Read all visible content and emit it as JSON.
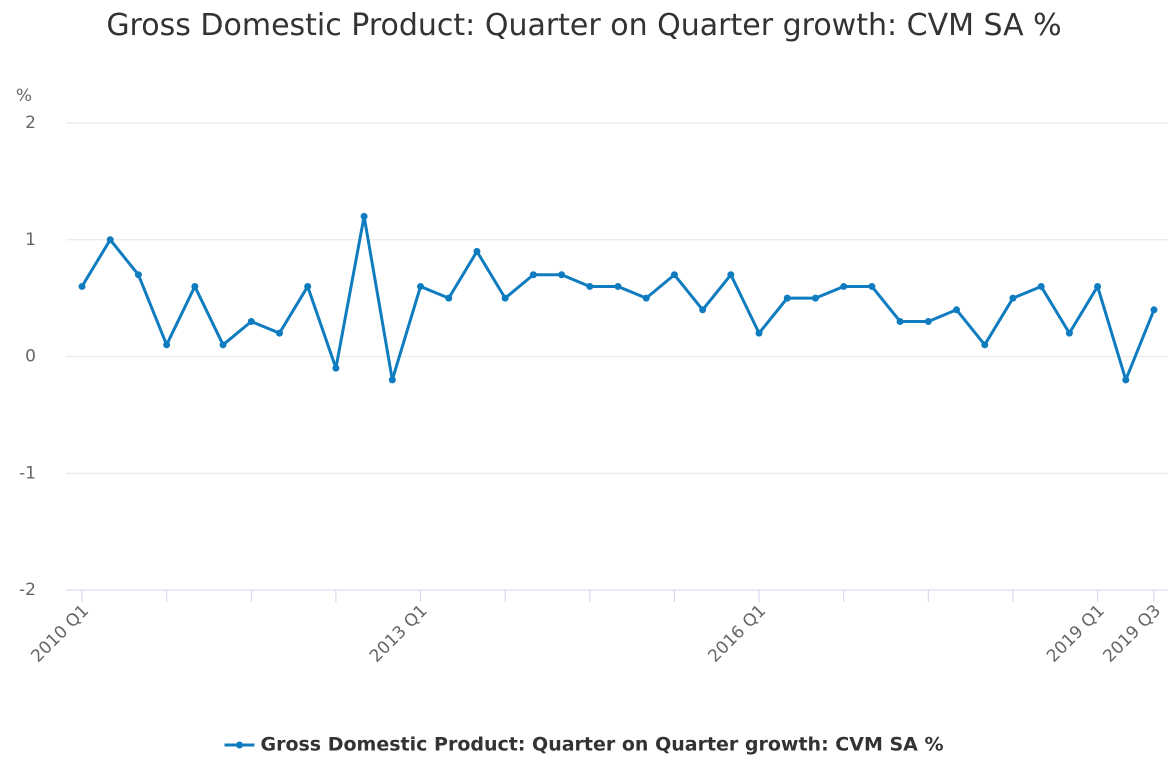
{
  "chart_data": {
    "type": "line",
    "title": "Gross Domestic Product: Quarter on Quarter growth: CVM SA %",
    "y_label": "%",
    "categories": [
      "2010 Q1",
      null,
      null,
      null,
      null,
      null,
      null,
      null,
      null,
      null,
      null,
      null,
      "2013 Q1",
      null,
      null,
      null,
      null,
      null,
      null,
      null,
      null,
      null,
      null,
      null,
      "2016 Q1",
      null,
      null,
      null,
      null,
      null,
      null,
      null,
      null,
      null,
      null,
      null,
      "2019 Q1",
      null,
      "2019 Q3"
    ],
    "series": [
      {
        "name": "Gross Domestic Product: Quarter on Quarter growth: CVM SA %",
        "color": "#0f7cc0",
        "values": [
          0.6,
          1.0,
          0.7,
          0.1,
          0.6,
          0.1,
          0.3,
          0.2,
          0.6,
          -0.1,
          1.2,
          -0.2,
          0.6,
          0.5,
          0.9,
          0.5,
          0.7,
          0.7,
          0.6,
          0.6,
          0.5,
          0.7,
          0.4,
          0.7,
          0.2,
          0.5,
          0.5,
          0.6,
          0.6,
          0.3,
          0.3,
          0.4,
          0.1,
          0.5,
          0.6,
          0.2,
          0.6,
          -0.2,
          0.4
        ]
      }
    ],
    "ylim": [
      -2,
      2
    ],
    "yticks": [
      -2,
      -1,
      0,
      1,
      2
    ],
    "grid": true
  }
}
